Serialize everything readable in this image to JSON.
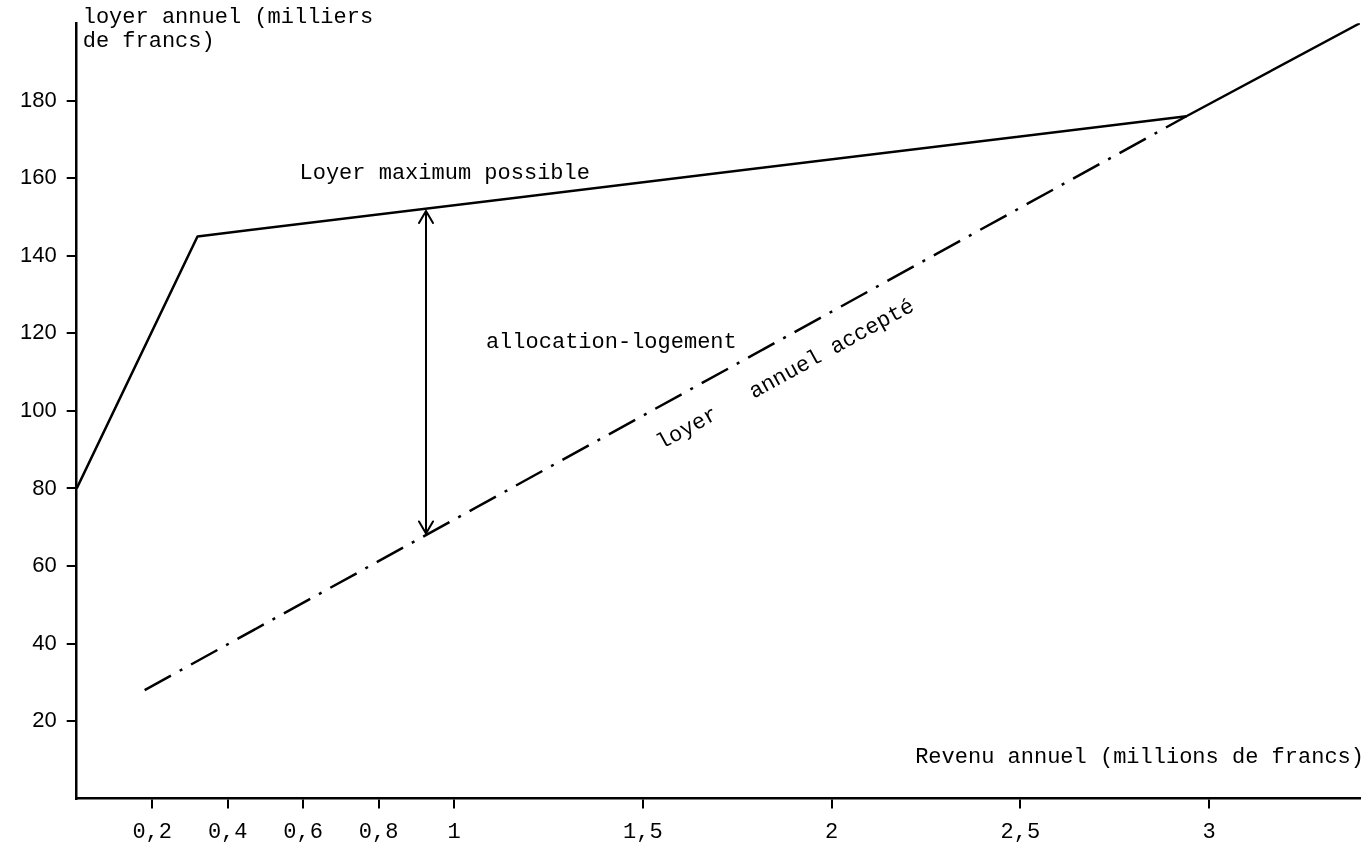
{
  "chart_data": {
    "type": "line",
    "xlabel": "Revenu annuel (millions de francs)",
    "ylabel": "loyer annuel (milliers\nde francs)",
    "xlim": [
      0,
      3.4
    ],
    "ylim": [
      0,
      200
    ],
    "xticks": [
      {
        "value": 0.2,
        "label": "0,2"
      },
      {
        "value": 0.4,
        "label": "0,4"
      },
      {
        "value": 0.6,
        "label": "0,6"
      },
      {
        "value": 0.8,
        "label": "0,8"
      },
      1,
      {
        "value": 1.5,
        "label": "1,5"
      },
      2,
      {
        "value": 2.5,
        "label": "2,5"
      },
      3
    ],
    "yticks": [
      20,
      40,
      60,
      80,
      100,
      120,
      140,
      160,
      180
    ],
    "grid": false,
    "legend": false,
    "marker": "none",
    "series": [
      {
        "name": "Loyer maximum possible",
        "color": "#000000",
        "line_style": "solid",
        "x": [
          0,
          0.32,
          2.94,
          3.4
        ],
        "values": [
          80,
          145,
          176,
          200
        ]
      },
      {
        "name": "loyer   annuel accepté",
        "color": "#000000",
        "line_style": "dashed",
        "x": [
          0.18,
          2.94
        ],
        "values": [
          28,
          176
        ]
      }
    ],
    "annotations": [
      "allocation-logement"
    ]
  }
}
